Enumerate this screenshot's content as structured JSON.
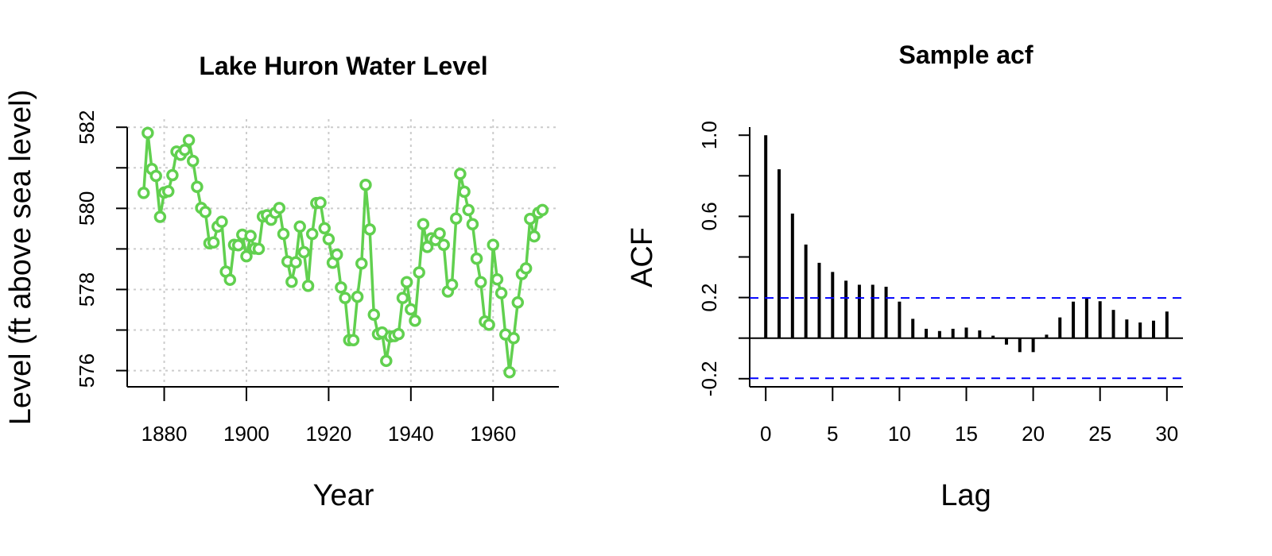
{
  "chart_data": [
    {
      "type": "line",
      "title": "Lake Huron Water Level",
      "xlabel": "Year",
      "ylabel": "Level (ft above sea level)",
      "xlim": [
        1871,
        1976
      ],
      "ylim": [
        575.6,
        582.2
      ],
      "xticks": [
        1880,
        1900,
        1920,
        1940,
        1960
      ],
      "yticks": [
        576,
        578,
        580,
        582
      ],
      "ytick_minor": [
        577,
        579,
        581
      ],
      "grid": true,
      "series_color": "#61D04F",
      "marker": "circle",
      "x": [
        1875,
        1876,
        1877,
        1878,
        1879,
        1880,
        1881,
        1882,
        1883,
        1884,
        1885,
        1886,
        1887,
        1888,
        1889,
        1890,
        1891,
        1892,
        1893,
        1894,
        1895,
        1896,
        1897,
        1898,
        1899,
        1900,
        1901,
        1902,
        1903,
        1904,
        1905,
        1906,
        1907,
        1908,
        1909,
        1910,
        1911,
        1912,
        1913,
        1914,
        1915,
        1916,
        1917,
        1918,
        1919,
        1920,
        1921,
        1922,
        1923,
        1924,
        1925,
        1926,
        1927,
        1928,
        1929,
        1930,
        1931,
        1932,
        1933,
        1934,
        1935,
        1936,
        1937,
        1938,
        1939,
        1940,
        1941,
        1942,
        1943,
        1944,
        1945,
        1946,
        1947,
        1948,
        1949,
        1950,
        1951,
        1952,
        1953,
        1954,
        1955,
        1956,
        1957,
        1958,
        1959,
        1960,
        1961,
        1962,
        1963,
        1964,
        1965,
        1966,
        1967,
        1968,
        1969,
        1970,
        1971,
        1972
      ],
      "values": [
        580.38,
        581.86,
        580.97,
        580.8,
        579.79,
        580.39,
        580.42,
        580.82,
        581.4,
        581.32,
        581.44,
        581.68,
        581.17,
        580.53,
        580.01,
        579.91,
        579.14,
        579.16,
        579.55,
        579.67,
        578.44,
        578.24,
        579.1,
        579.09,
        579.35,
        578.82,
        579.32,
        579.01,
        579.0,
        579.8,
        579.83,
        579.72,
        579.89,
        580.01,
        579.37,
        578.69,
        578.19,
        578.67,
        579.55,
        578.92,
        578.09,
        579.37,
        580.13,
        580.14,
        579.51,
        579.24,
        578.66,
        578.86,
        578.05,
        577.79,
        576.75,
        576.75,
        577.82,
        578.64,
        580.58,
        579.48,
        577.38,
        576.9,
        576.94,
        576.24,
        576.84,
        576.85,
        576.9,
        577.79,
        578.18,
        577.51,
        577.23,
        578.42,
        579.61,
        579.05,
        579.26,
        579.22,
        579.38,
        579.1,
        577.95,
        578.12,
        579.75,
        580.85,
        580.41,
        579.96,
        579.61,
        578.76,
        578.18,
        577.21,
        577.13,
        579.1,
        578.25,
        577.91,
        576.89,
        575.96,
        576.8,
        577.68,
        578.38,
        578.52,
        579.74,
        579.31,
        579.89,
        579.96
      ]
    },
    {
      "type": "bar",
      "title": "Sample acf",
      "xlabel": "Lag",
      "ylabel": "ACF",
      "xlim": [
        -1.2,
        31.2
      ],
      "ylim": [
        -0.24,
        1.04
      ],
      "xticks": [
        0,
        5,
        10,
        15,
        20,
        25,
        30
      ],
      "yticks": [
        -0.2,
        0.2,
        0.6,
        1.0
      ],
      "ytick_labels": [
        "-0.2",
        "0.2",
        "0.6",
        "1.0"
      ],
      "ytick_minor": [
        0.0,
        0.4,
        0.8
      ],
      "grid": false,
      "confidence_band": 0.198,
      "confidence_color": "#0000FF",
      "lags": [
        0,
        1,
        2,
        3,
        4,
        5,
        6,
        7,
        8,
        9,
        10,
        11,
        12,
        13,
        14,
        15,
        16,
        17,
        18,
        19,
        20,
        21,
        22,
        23,
        24,
        25,
        26,
        27,
        28,
        29,
        30
      ],
      "values": [
        1.0,
        0.832,
        0.614,
        0.461,
        0.371,
        0.326,
        0.283,
        0.263,
        0.263,
        0.253,
        0.18,
        0.095,
        0.046,
        0.035,
        0.046,
        0.052,
        0.038,
        0.012,
        -0.032,
        -0.069,
        -0.069,
        0.017,
        0.102,
        0.18,
        0.199,
        0.182,
        0.139,
        0.092,
        0.077,
        0.086,
        0.131
      ]
    }
  ]
}
